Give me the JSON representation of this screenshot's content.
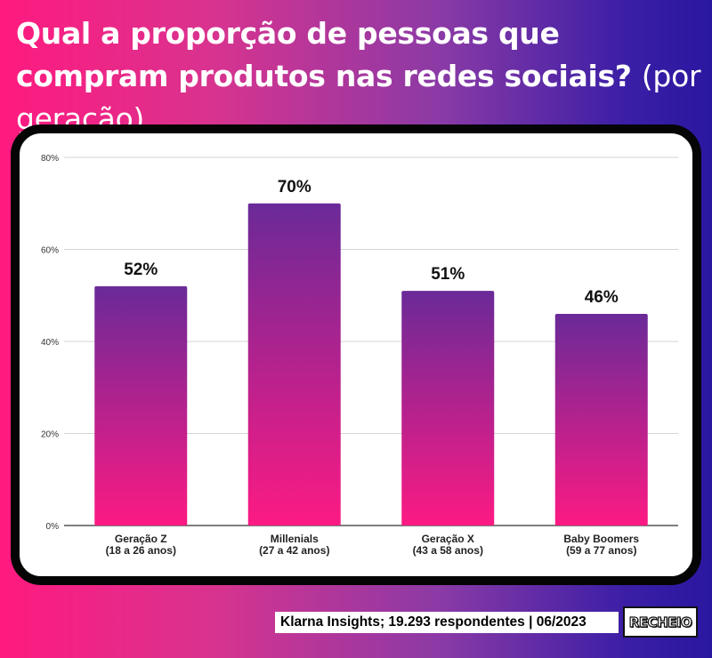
{
  "title": {
    "main": "Qual a proporção de pessoas que compram produtos nas redes sociais?",
    "suffix": "(por geração)"
  },
  "chart_data": {
    "type": "bar",
    "categories": [
      [
        "Geração Z",
        "(18 a 26 anos)"
      ],
      [
        "Millenials",
        "(27 a 42 anos)"
      ],
      [
        "Geração X",
        "(43 a 58 anos)"
      ],
      [
        "Baby Boomers",
        "(59 a 77 anos)"
      ]
    ],
    "values": [
      52,
      70,
      51,
      46
    ],
    "data_labels": [
      "52%",
      "70%",
      "51%",
      "46%"
    ],
    "ylim": [
      0,
      80
    ],
    "yticks": [
      0,
      20,
      40,
      60,
      80
    ],
    "ytick_labels": [
      "0%",
      "20%",
      "40%",
      "60%",
      "80%"
    ],
    "grid": true,
    "bar_color_top": "#6a2a98",
    "bar_color_bottom": "#fd1a83"
  },
  "source": "Klarna Insights;  19.293 respondentes | 06/2023",
  "logo": "RECHEIO"
}
